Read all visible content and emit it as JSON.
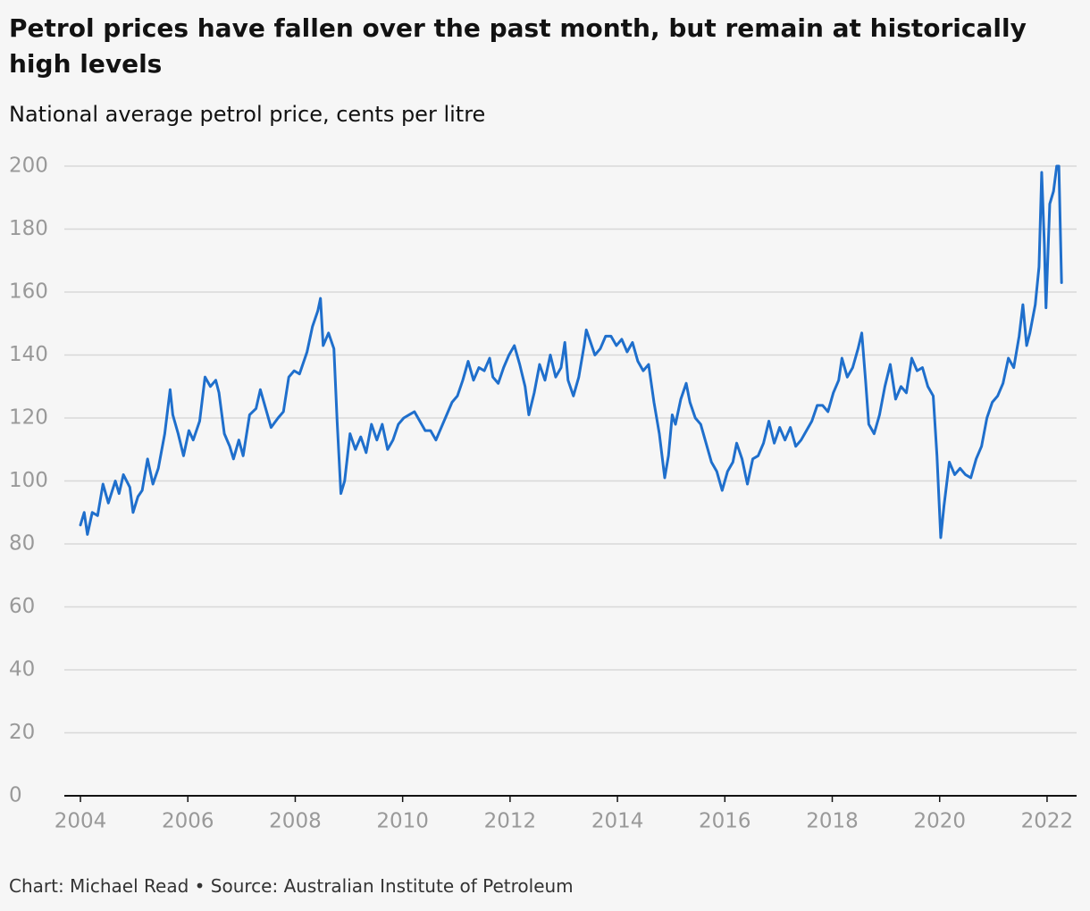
{
  "chart_data": {
    "type": "line",
    "title": "Petrol prices have fallen over the past month, but remain at historically high levels",
    "subtitle": "National average petrol price, cents per litre",
    "source": "Chart: Michael Read • Source: Australian Institute of Petroleum",
    "color": "#1f6fcc",
    "xlim": [
      2003.75,
      2022.55
    ],
    "xticks": [
      2004,
      2006,
      2008,
      2010,
      2012,
      2014,
      2016,
      2018,
      2020,
      2022
    ],
    "ylim": [
      0,
      200
    ],
    "yticks": [
      0,
      20,
      40,
      60,
      80,
      100,
      120,
      140,
      160,
      180,
      200
    ],
    "grid": true,
    "x": [
      2004.0,
      2004.07,
      2004.13,
      2004.22,
      2004.32,
      2004.42,
      2004.52,
      2004.65,
      2004.72,
      2004.8,
      2004.92,
      2004.98,
      2005.07,
      2005.15,
      2005.25,
      2005.35,
      2005.45,
      2005.57,
      2005.67,
      2005.72,
      2005.82,
      2005.92,
      2006.02,
      2006.1,
      2006.22,
      2006.32,
      2006.42,
      2006.52,
      2006.58,
      2006.68,
      2006.78,
      2006.85,
      2006.95,
      2007.03,
      2007.15,
      2007.27,
      2007.35,
      2007.45,
      2007.55,
      2007.68,
      2007.78,
      2007.88,
      2007.98,
      2008.08,
      2008.22,
      2008.32,
      2008.42,
      2008.47,
      2008.52,
      2008.62,
      2008.72,
      2008.78,
      2008.85,
      2008.92,
      2009.02,
      2009.12,
      2009.22,
      2009.32,
      2009.42,
      2009.52,
      2009.62,
      2009.72,
      2009.82,
      2009.92,
      2010.02,
      2010.12,
      2010.22,
      2010.32,
      2010.42,
      2010.52,
      2010.62,
      2010.72,
      2010.82,
      2010.92,
      2011.02,
      2011.12,
      2011.22,
      2011.32,
      2011.42,
      2011.52,
      2011.62,
      2011.68,
      2011.78,
      2011.88,
      2011.98,
      2012.08,
      2012.18,
      2012.28,
      2012.35,
      2012.45,
      2012.55,
      2012.65,
      2012.75,
      2012.85,
      2012.95,
      2013.02,
      2013.08,
      2013.18,
      2013.28,
      2013.38,
      2013.42,
      2013.48,
      2013.58,
      2013.68,
      2013.78,
      2013.88,
      2013.98,
      2014.08,
      2014.18,
      2014.28,
      2014.38,
      2014.48,
      2014.58,
      2014.68,
      2014.78,
      2014.88,
      2014.95,
      2015.02,
      2015.08,
      2015.18,
      2015.28,
      2015.35,
      2015.45,
      2015.55,
      2015.65,
      2015.75,
      2015.85,
      2015.95,
      2016.05,
      2016.15,
      2016.22,
      2016.32,
      2016.42,
      2016.52,
      2016.62,
      2016.72,
      2016.82,
      2016.92,
      2017.02,
      2017.12,
      2017.22,
      2017.32,
      2017.42,
      2017.52,
      2017.62,
      2017.72,
      2017.82,
      2017.92,
      2018.02,
      2018.12,
      2018.18,
      2018.28,
      2018.38,
      2018.48,
      2018.55,
      2018.62,
      2018.68,
      2018.78,
      2018.88,
      2018.98,
      2019.08,
      2019.18,
      2019.28,
      2019.38,
      2019.48,
      2019.58,
      2019.68,
      2019.78,
      2019.88,
      2019.95,
      2020.02,
      2020.08,
      2020.18,
      2020.28,
      2020.38,
      2020.48,
      2020.58,
      2020.68,
      2020.78,
      2020.88,
      2020.98,
      2021.08,
      2021.18,
      2021.28,
      2021.38,
      2021.48,
      2021.55,
      2021.62,
      2021.68,
      2021.78,
      2021.85,
      2021.9,
      2021.95,
      2021.98,
      2022.05,
      2022.12,
      2022.18,
      2022.22,
      2022.27
    ],
    "values": [
      86,
      90,
      83,
      90,
      89,
      99,
      93,
      100,
      96,
      102,
      98,
      90,
      95,
      97,
      107,
      99,
      104,
      115,
      129,
      121,
      115,
      108,
      116,
      113,
      119,
      133,
      130,
      132,
      128,
      115,
      111,
      107,
      113,
      108,
      121,
      123,
      129,
      123,
      117,
      120,
      122,
      133,
      135,
      134,
      141,
      149,
      154,
      158,
      143,
      147,
      142,
      119,
      96,
      100,
      115,
      110,
      114,
      109,
      118,
      113,
      118,
      110,
      113,
      118,
      120,
      121,
      122,
      119,
      116,
      116,
      113,
      117,
      121,
      125,
      127,
      132,
      138,
      132,
      136,
      135,
      139,
      133,
      131,
      136,
      140,
      143,
      137,
      130,
      121,
      128,
      137,
      132,
      140,
      133,
      136,
      144,
      132,
      127,
      133,
      143,
      148,
      145,
      140,
      142,
      146,
      146,
      143,
      145,
      141,
      144,
      138,
      135,
      137,
      125,
      115,
      101,
      108,
      121,
      118,
      126,
      131,
      125,
      120,
      118,
      112,
      106,
      103,
      97,
      103,
      106,
      112,
      107,
      99,
      107,
      108,
      112,
      119,
      112,
      117,
      113,
      117,
      111,
      113,
      116,
      119,
      124,
      124,
      122,
      128,
      132,
      139,
      133,
      136,
      142,
      147,
      132,
      118,
      115,
      121,
      130,
      137,
      126,
      130,
      128,
      139,
      135,
      136,
      130,
      127,
      108,
      82,
      92,
      106,
      102,
      104,
      102,
      101,
      107,
      111,
      120,
      125,
      127,
      131,
      139,
      136,
      146,
      156,
      143,
      147,
      156,
      168,
      198,
      175,
      155,
      188,
      192,
      200,
      200,
      163
    ]
  }
}
